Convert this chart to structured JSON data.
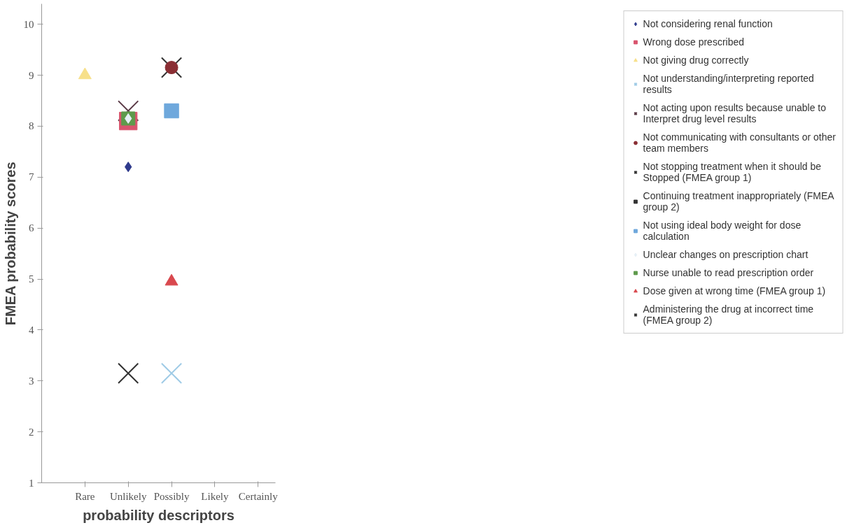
{
  "chart_data": {
    "type": "scatter",
    "xlabel": "probability descriptors",
    "ylabel": "FMEA probability scores",
    "categories": [
      "Rare",
      "Unlikely",
      "Possibly",
      "Likely",
      "Certainly"
    ],
    "ylim": [
      1,
      10.4
    ],
    "yticks": [
      1,
      2,
      3,
      4,
      5,
      6,
      7,
      8,
      9,
      10
    ],
    "grid": false,
    "legend": "right",
    "series": [
      {
        "name": "Not considering renal function",
        "color": "#2e3a8c",
        "marker": "diamond",
        "x": [
          "Unlikely"
        ],
        "values": [
          7.2
        ]
      },
      {
        "name": "Wrong dose prescribed",
        "color": "#d9546e",
        "marker": "square",
        "x": [
          "Unlikely"
        ],
        "values": [
          8.1
        ]
      },
      {
        "name": "Not giving drug correctly",
        "color": "#f7e08a",
        "marker": "triangle",
        "x": [
          "Rare"
        ],
        "values": [
          9.0
        ]
      },
      {
        "name": "Not understanding/interpreting reported results",
        "color": "#9fcbe6",
        "marker": "cross",
        "x": [
          "Possibly"
        ],
        "values": [
          3.15
        ]
      },
      {
        "name": "Not acting upon results because unable to Interpret drug level results",
        "color": "#5a3a46",
        "marker": "cross",
        "x": [
          "Unlikely"
        ],
        "values": [
          8.3
        ]
      },
      {
        "name": "Not communicating with consultants or other team members",
        "color": "#8a2e34",
        "marker": "circle",
        "x": [
          "Possibly"
        ],
        "values": [
          9.15
        ]
      },
      {
        "name": "Not stopping treatment when it should be Stopped (FMEA group 1)",
        "color": "#333333",
        "marker": "cross",
        "x": [
          "Unlikely"
        ],
        "values": [
          3.15
        ]
      },
      {
        "name": "Continuing treatment inappropriately (FMEA group 2)",
        "color": "#333333",
        "marker": "square",
        "x": [
          "Unlikely"
        ],
        "values": [
          null
        ]
      },
      {
        "name": "Not using ideal body weight for dose calculation",
        "color": "#6fa8dc",
        "marker": "square",
        "x": [
          "Possibly"
        ],
        "values": [
          8.3
        ]
      },
      {
        "name": "Unclear changes on prescription chart",
        "color": "#e6f0f6",
        "marker": "diamond",
        "x": [
          "Unlikely"
        ],
        "values": [
          8.15
        ]
      },
      {
        "name": "Nurse unable to read prescription order",
        "color": "#5e9a4c",
        "marker": "square",
        "x": [
          "Unlikely"
        ],
        "values": [
          8.15
        ]
      },
      {
        "name": "Dose given at wrong time (FMEA group 1)",
        "color": "#d9484e",
        "marker": "triangle",
        "x": [
          "Possibly"
        ],
        "values": [
          4.95
        ]
      },
      {
        "name": "Administering the drug at incorrect time (FMEA group 2)",
        "color": "#333333",
        "marker": "cross",
        "x": [
          "Possibly"
        ],
        "values": [
          9.15
        ]
      }
    ]
  }
}
